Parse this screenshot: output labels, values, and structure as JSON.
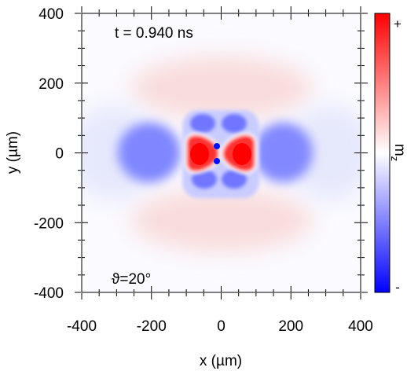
{
  "chart_data": {
    "type": "heatmap",
    "title": "",
    "annotations": {
      "time": "t = 0.940 ns",
      "angle": "ϑ=20°"
    },
    "xlabel": "x (µm)",
    "ylabel": "y (µm)",
    "xlim": [
      -400,
      400
    ],
    "ylim": [
      -400,
      400
    ],
    "x_ticks": [
      -400,
      -200,
      0,
      200,
      400
    ],
    "y_ticks": [
      -400,
      -200,
      0,
      200,
      400
    ],
    "colorbar": {
      "label": "m",
      "label_subscript": "z",
      "max_label": "+",
      "min_label": "-",
      "colors": {
        "max": "#ff0000",
        "mid": "#ffffff",
        "min": "#0000ff"
      }
    },
    "features": [
      {
        "name": "central red lobe left",
        "x": -45,
        "y": 0,
        "sign": "+"
      },
      {
        "name": "central red lobe right",
        "x": 45,
        "y": 0,
        "sign": "+"
      },
      {
        "name": "blue lobe left",
        "x": -185,
        "y": 0,
        "sign": "-"
      },
      {
        "name": "blue lobe right",
        "x": 175,
        "y": 0,
        "sign": "-"
      },
      {
        "name": "blue cluster top",
        "x": 0,
        "y": 85,
        "sign": "-"
      },
      {
        "name": "blue cluster bottom",
        "x": 0,
        "y": -75,
        "sign": "-"
      },
      {
        "name": "blue dot top",
        "x": -5,
        "y": 20,
        "sign": "-"
      },
      {
        "name": "blue dot bottom",
        "x": -5,
        "y": -25,
        "sign": "-"
      },
      {
        "name": "faint red arc top",
        "x": 0,
        "y": 190,
        "sign": "+"
      },
      {
        "name": "faint red arc bottom",
        "x": 0,
        "y": -190,
        "sign": "+"
      }
    ]
  }
}
